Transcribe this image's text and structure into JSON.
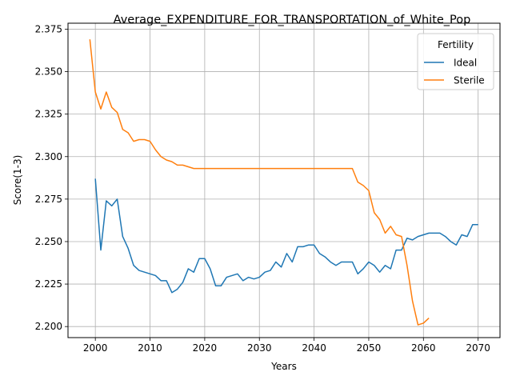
{
  "chart_data": {
    "type": "line",
    "title": "Average_EXPENDITURE_FOR_TRANSPORTATION_of_White_Pop",
    "xlabel": "Years",
    "ylabel": "Score(1-3)",
    "xlim": [
      1995,
      2074
    ],
    "ylim": [
      2.1935,
      2.3785
    ],
    "xticks": [
      2000,
      2010,
      2020,
      2030,
      2040,
      2050,
      2060,
      2070
    ],
    "yticks": [
      2.2,
      2.225,
      2.25,
      2.275,
      2.3,
      2.325,
      2.35,
      2.375
    ],
    "ytick_labels": [
      "2.200",
      "2.225",
      "2.250",
      "2.275",
      "2.300",
      "2.325",
      "2.350",
      "2.375"
    ],
    "grid": true,
    "legend": {
      "title": "Fertility",
      "placement": "top-right"
    },
    "series": [
      {
        "name": "Ideal",
        "color": "#1f77b4",
        "points": [
          [
            2000,
            2.287
          ],
          [
            2001,
            2.245
          ],
          [
            2002,
            2.274
          ],
          [
            2003,
            2.271
          ],
          [
            2004,
            2.275
          ],
          [
            2005,
            2.253
          ],
          [
            2006,
            2.246
          ],
          [
            2007,
            2.236
          ],
          [
            2008,
            2.233
          ],
          [
            2009,
            2.232
          ],
          [
            2010,
            2.231
          ],
          [
            2011,
            2.23
          ],
          [
            2012,
            2.227
          ],
          [
            2013,
            2.227
          ],
          [
            2014,
            2.22
          ],
          [
            2015,
            2.222
          ],
          [
            2016,
            2.226
          ],
          [
            2017,
            2.234
          ],
          [
            2018,
            2.232
          ],
          [
            2019,
            2.24
          ],
          [
            2020,
            2.24
          ],
          [
            2021,
            2.234
          ],
          [
            2022,
            2.224
          ],
          [
            2023,
            2.224
          ],
          [
            2024,
            2.229
          ],
          [
            2025,
            2.23
          ],
          [
            2026,
            2.231
          ],
          [
            2027,
            2.227
          ],
          [
            2028,
            2.229
          ],
          [
            2029,
            2.228
          ],
          [
            2030,
            2.229
          ],
          [
            2031,
            2.232
          ],
          [
            2032,
            2.233
          ],
          [
            2033,
            2.238
          ],
          [
            2034,
            2.235
          ],
          [
            2035,
            2.243
          ],
          [
            2036,
            2.238
          ],
          [
            2037,
            2.247
          ],
          [
            2038,
            2.247
          ],
          [
            2039,
            2.248
          ],
          [
            2040,
            2.248
          ],
          [
            2041,
            2.243
          ],
          [
            2042,
            2.241
          ],
          [
            2043,
            2.238
          ],
          [
            2044,
            2.236
          ],
          [
            2045,
            2.238
          ],
          [
            2046,
            2.238
          ],
          [
            2047,
            2.238
          ],
          [
            2048,
            2.231
          ],
          [
            2049,
            2.234
          ],
          [
            2050,
            2.238
          ],
          [
            2051,
            2.236
          ],
          [
            2052,
            2.232
          ],
          [
            2053,
            2.236
          ],
          [
            2054,
            2.234
          ],
          [
            2055,
            2.245
          ],
          [
            2056,
            2.245
          ],
          [
            2057,
            2.252
          ],
          [
            2058,
            2.251
          ],
          [
            2059,
            2.253
          ],
          [
            2060,
            2.254
          ],
          [
            2061,
            2.255
          ],
          [
            2062,
            2.255
          ],
          [
            2063,
            2.255
          ],
          [
            2064,
            2.253
          ],
          [
            2065,
            2.25
          ],
          [
            2066,
            2.248
          ],
          [
            2067,
            2.254
          ],
          [
            2068,
            2.253
          ],
          [
            2069,
            2.26
          ],
          [
            2070,
            2.26
          ]
        ]
      },
      {
        "name": "Sterile",
        "color": "#ff7f0e",
        "points": [
          [
            1999,
            2.369
          ],
          [
            2000,
            2.338
          ],
          [
            2001,
            2.328
          ],
          [
            2002,
            2.338
          ],
          [
            2003,
            2.329
          ],
          [
            2004,
            2.326
          ],
          [
            2005,
            2.316
          ],
          [
            2006,
            2.314
          ],
          [
            2007,
            2.309
          ],
          [
            2008,
            2.31
          ],
          [
            2009,
            2.31
          ],
          [
            2010,
            2.309
          ],
          [
            2011,
            2.304
          ],
          [
            2012,
            2.3
          ],
          [
            2013,
            2.298
          ],
          [
            2014,
            2.297
          ],
          [
            2015,
            2.295
          ],
          [
            2016,
            2.295
          ],
          [
            2017,
            2.294
          ],
          [
            2018,
            2.293
          ],
          [
            2019,
            2.293
          ],
          [
            2020,
            2.293
          ],
          [
            2021,
            2.293
          ],
          [
            2022,
            2.293
          ],
          [
            2023,
            2.293
          ],
          [
            2024,
            2.293
          ],
          [
            2025,
            2.293
          ],
          [
            2026,
            2.293
          ],
          [
            2027,
            2.293
          ],
          [
            2028,
            2.293
          ],
          [
            2029,
            2.293
          ],
          [
            2030,
            2.293
          ],
          [
            2031,
            2.293
          ],
          [
            2032,
            2.293
          ],
          [
            2033,
            2.293
          ],
          [
            2034,
            2.293
          ],
          [
            2035,
            2.293
          ],
          [
            2036,
            2.293
          ],
          [
            2037,
            2.293
          ],
          [
            2038,
            2.293
          ],
          [
            2039,
            2.293
          ],
          [
            2040,
            2.293
          ],
          [
            2041,
            2.293
          ],
          [
            2042,
            2.293
          ],
          [
            2043,
            2.293
          ],
          [
            2044,
            2.293
          ],
          [
            2045,
            2.293
          ],
          [
            2046,
            2.293
          ],
          [
            2047,
            2.293
          ],
          [
            2048,
            2.285
          ],
          [
            2049,
            2.283
          ],
          [
            2050,
            2.28
          ],
          [
            2051,
            2.267
          ],
          [
            2052,
            2.263
          ],
          [
            2053,
            2.255
          ],
          [
            2054,
            2.259
          ],
          [
            2055,
            2.254
          ],
          [
            2056,
            2.253
          ],
          [
            2057,
            2.236
          ],
          [
            2058,
            2.215
          ],
          [
            2059,
            2.201
          ],
          [
            2060,
            2.202
          ],
          [
            2061,
            2.205
          ]
        ]
      }
    ]
  }
}
